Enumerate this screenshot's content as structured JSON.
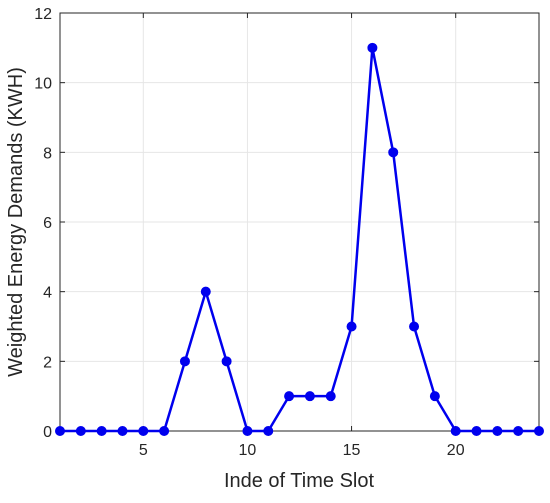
{
  "chart_data": {
    "type": "line",
    "title": "",
    "xlabel": "Inde of Time Slot",
    "ylabel": "Weighted Energy Demands (KWH)",
    "xlim": [
      1,
      24
    ],
    "ylim": [
      0,
      12
    ],
    "x_ticks": [
      5,
      10,
      15,
      20
    ],
    "y_ticks": [
      0,
      2,
      4,
      6,
      8,
      10,
      12
    ],
    "grid": true,
    "legend": "none",
    "colors": {
      "series": "#0000ee",
      "axis": "#262626",
      "grid": "#e6e6e6",
      "background": "#ffffff"
    },
    "series": [
      {
        "x": [
          1,
          2,
          3,
          4,
          5,
          6,
          7,
          8,
          9,
          10,
          11,
          12,
          13,
          14,
          15,
          16,
          17,
          18,
          19,
          20,
          21,
          22,
          23,
          24
        ],
        "values": [
          0,
          0,
          0,
          0,
          0,
          0,
          2,
          4,
          2,
          0,
          0,
          1,
          1,
          1,
          3,
          11,
          8,
          3,
          1,
          0,
          0,
          0,
          0,
          0
        ],
        "marker": "circle"
      }
    ]
  }
}
